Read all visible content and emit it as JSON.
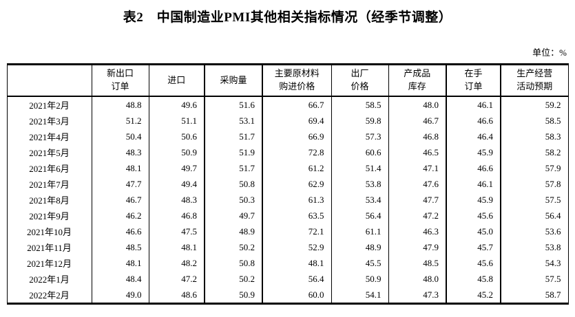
{
  "title": "表2　中国制造业PMI其他相关指标情况（经季节调整）",
  "unit_label": "单位：%",
  "colors": {
    "text": "#000000",
    "border": "#000000",
    "background": "#ffffff"
  },
  "table": {
    "row_header_label": "",
    "columns": [
      "新出口\n订单",
      "进口",
      "采购量",
      "主要原材料\n购进价格",
      "出厂\n价格",
      "产成品\n库存",
      "在手\n订单",
      "生产经营\n活动预期"
    ],
    "rows": [
      {
        "month": "2021年2月",
        "values": [
          "48.8",
          "49.6",
          "51.6",
          "66.7",
          "58.5",
          "48.0",
          "46.1",
          "59.2"
        ]
      },
      {
        "month": "2021年3月",
        "values": [
          "51.2",
          "51.1",
          "53.1",
          "69.4",
          "59.8",
          "46.7",
          "46.6",
          "58.5"
        ]
      },
      {
        "month": "2021年4月",
        "values": [
          "50.4",
          "50.6",
          "51.7",
          "66.9",
          "57.3",
          "46.8",
          "46.4",
          "58.3"
        ]
      },
      {
        "month": "2021年5月",
        "values": [
          "48.3",
          "50.9",
          "51.9",
          "72.8",
          "60.6",
          "46.5",
          "45.9",
          "58.2"
        ]
      },
      {
        "month": "2021年6月",
        "values": [
          "48.1",
          "49.7",
          "51.7",
          "61.2",
          "51.4",
          "47.1",
          "46.6",
          "57.9"
        ]
      },
      {
        "month": "2021年7月",
        "values": [
          "47.7",
          "49.4",
          "50.8",
          "62.9",
          "53.8",
          "47.6",
          "46.1",
          "57.8"
        ]
      },
      {
        "month": "2021年8月",
        "values": [
          "46.7",
          "48.3",
          "50.3",
          "61.3",
          "53.4",
          "47.7",
          "45.9",
          "57.5"
        ]
      },
      {
        "month": "2021年9月",
        "values": [
          "46.2",
          "46.8",
          "49.7",
          "63.5",
          "56.4",
          "47.2",
          "45.6",
          "56.4"
        ]
      },
      {
        "month": "2021年10月",
        "values": [
          "46.6",
          "47.5",
          "48.9",
          "72.1",
          "61.1",
          "46.3",
          "45.0",
          "53.6"
        ]
      },
      {
        "month": "2021年11月",
        "values": [
          "48.5",
          "48.1",
          "50.2",
          "52.9",
          "48.9",
          "47.9",
          "45.7",
          "53.8"
        ]
      },
      {
        "month": "2021年12月",
        "values": [
          "48.1",
          "48.2",
          "50.8",
          "48.1",
          "45.5",
          "48.5",
          "45.6",
          "54.3"
        ]
      },
      {
        "month": "2022年1月",
        "values": [
          "48.4",
          "47.2",
          "50.2",
          "56.4",
          "50.9",
          "48.0",
          "45.8",
          "57.5"
        ]
      },
      {
        "month": "2022年2月",
        "values": [
          "49.0",
          "48.6",
          "50.9",
          "60.0",
          "54.1",
          "47.3",
          "45.2",
          "58.7"
        ]
      }
    ]
  }
}
